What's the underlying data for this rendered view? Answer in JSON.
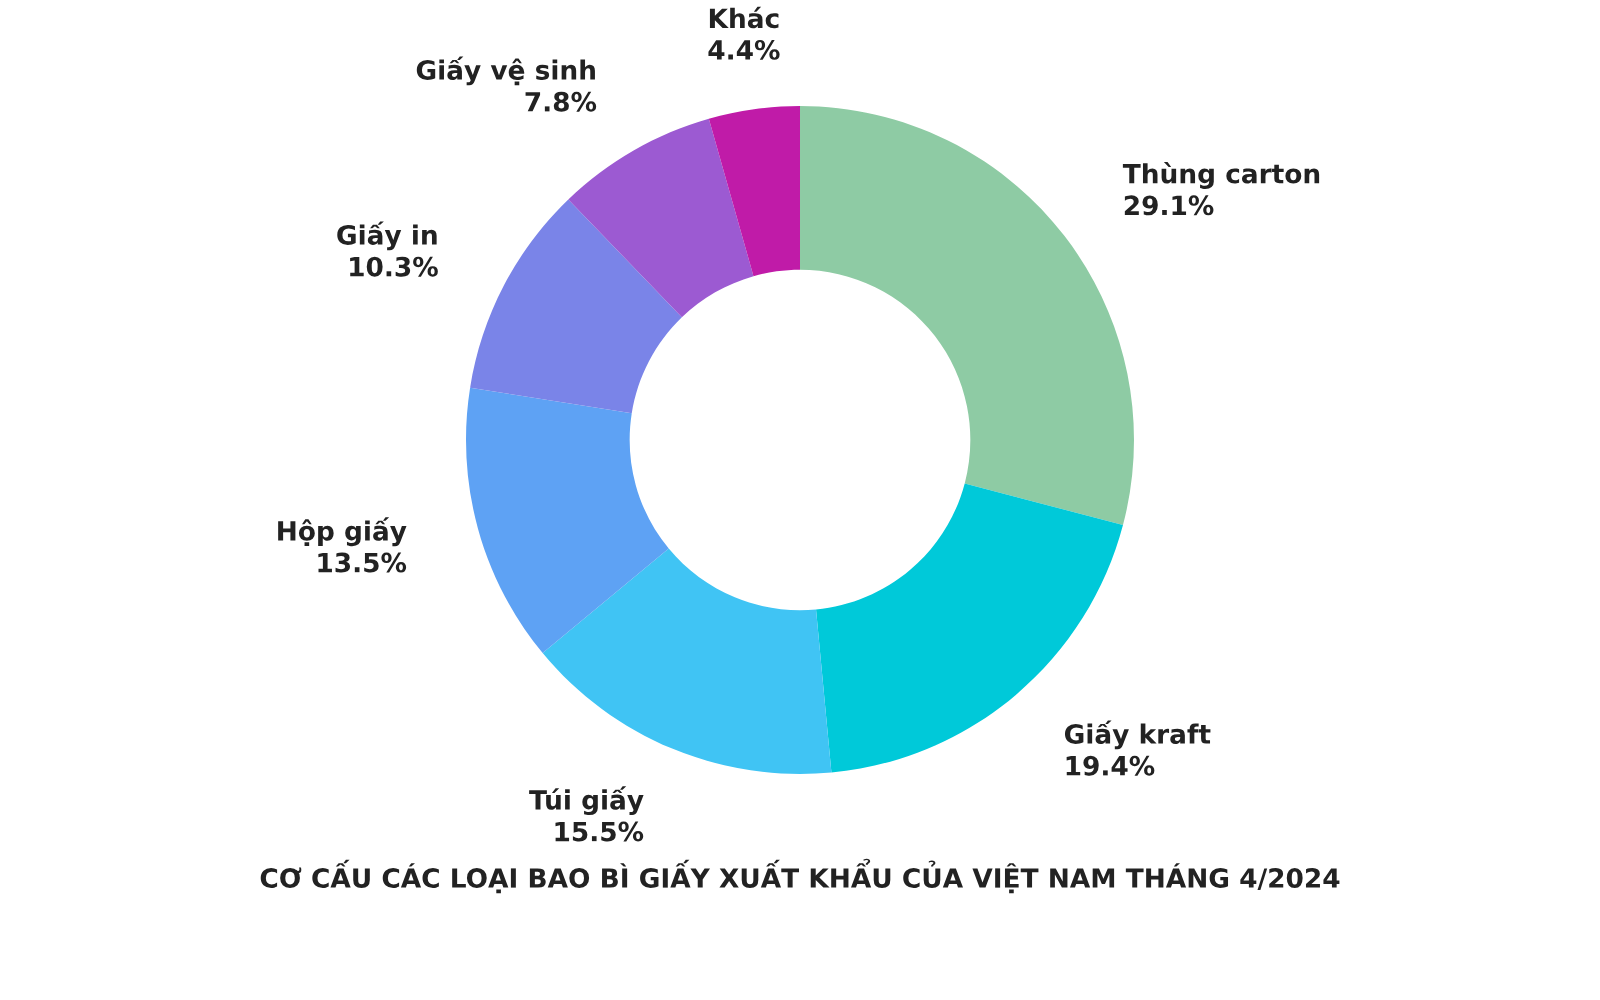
{
  "chart_data": {
    "type": "donut",
    "title": "CƠ CẤU CÁC LOẠI BAO BÌ GIẤY XUẤT KHẨU CỦA VIỆT NAM THÁNG 4/2024",
    "categories": [
      "Thùng carton",
      "Giấy kraft",
      "Túi giấy",
      "Hộp giấy",
      "Giấy in",
      "Giấy vệ sinh",
      "Khác"
    ],
    "values": [
      29.1,
      19.4,
      15.5,
      13.5,
      10.3,
      7.8,
      4.4
    ],
    "value_labels": [
      "29.1%",
      "19.4%",
      "15.5%",
      "13.5%",
      "10.3%",
      "7.8%",
      "4.4%"
    ],
    "colors": [
      "#8ecba4",
      "#00c9d9",
      "#40c4f4",
      "#5ea2f4",
      "#7a84e8",
      "#9c5ad2",
      "#c01ba8"
    ],
    "legend": false
  }
}
